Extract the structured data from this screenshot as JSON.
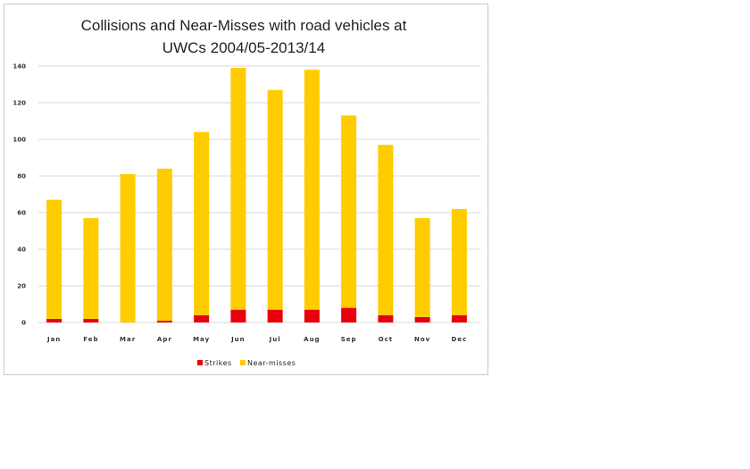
{
  "chart_data": {
    "type": "bar",
    "stacked": true,
    "title_lines": [
      "Collisions and Near-Misses with road vehicles at",
      "UWCs 2004/05-2013/14"
    ],
    "xlabel": "",
    "ylabel": "",
    "ylim": [
      0,
      140
    ],
    "yticks": [
      0,
      20,
      40,
      60,
      80,
      100,
      120,
      140
    ],
    "grid": true,
    "legend_position": "bottom",
    "categories": [
      "Jan",
      "Feb",
      "Mar",
      "Apr",
      "May",
      "Jun",
      "Jul",
      "Aug",
      "Sep",
      "Oct",
      "Nov",
      "Dec"
    ],
    "series": [
      {
        "name": "Strikes",
        "color": "#e8000b",
        "values": [
          2,
          2,
          0,
          1,
          4,
          7,
          7,
          7,
          8,
          4,
          3,
          4
        ]
      },
      {
        "name": "Near-misses",
        "color": "#ffcc00",
        "values": [
          65,
          55,
          81,
          83,
          100,
          132,
          120,
          131,
          105,
          93,
          54,
          58
        ]
      }
    ]
  }
}
